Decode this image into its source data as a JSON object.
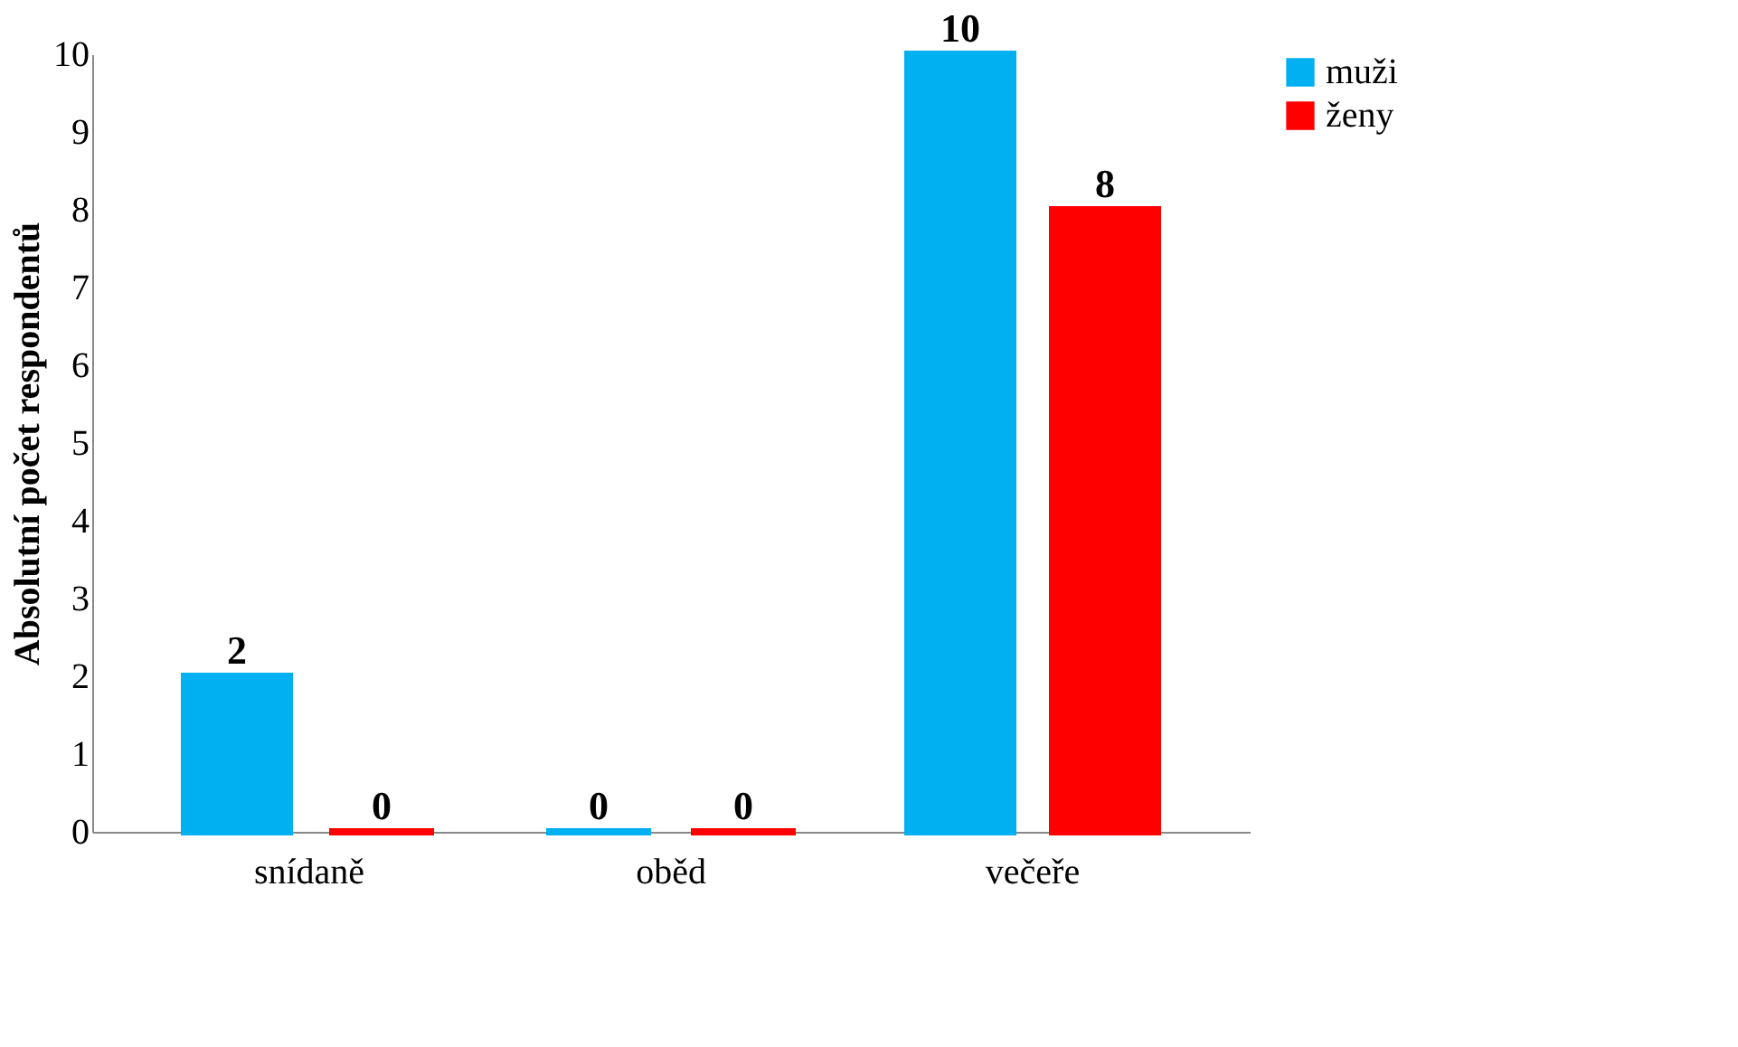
{
  "chart_data": {
    "type": "bar",
    "ylabel": "Absolutní počet respondentů",
    "categories": [
      "snídaně",
      "oběd",
      "večeře"
    ],
    "series": [
      {
        "name": "muži",
        "color": "#00b0f0",
        "values": [
          2,
          0,
          10
        ]
      },
      {
        "name": "ženy",
        "color": "#ff0000",
        "values": [
          0,
          0,
          8
        ]
      }
    ],
    "ylim": [
      0,
      10
    ],
    "yticks": [
      0,
      1,
      2,
      3,
      4,
      5,
      6,
      7,
      8,
      9,
      10
    ],
    "grid": false,
    "legend": "right",
    "data_labels": true
  }
}
